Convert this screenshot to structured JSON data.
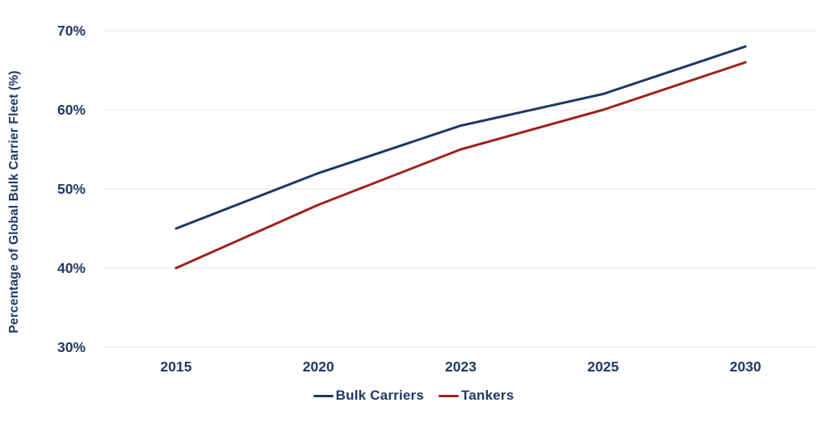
{
  "chart_data": {
    "type": "line",
    "title": "",
    "xlabel": "",
    "ylabel": "Percentage of Global Bulk Carrier Fleet (%)",
    "categories": [
      "2015",
      "2020",
      "2023",
      "2025",
      "2030"
    ],
    "series": [
      {
        "name": "Bulk Carriers",
        "color": "#1f3864",
        "values": [
          45,
          52,
          58,
          62,
          68
        ]
      },
      {
        "name": "Tankers",
        "color": "#9e2120",
        "values": [
          40,
          48,
          55,
          60,
          66
        ]
      }
    ],
    "ylim": [
      30,
      70
    ],
    "yticks": [
      {
        "value": 70,
        "label": "70%"
      },
      {
        "value": 60,
        "label": "60%"
      },
      {
        "value": 50,
        "label": "50%"
      },
      {
        "value": 40,
        "label": "40%"
      },
      {
        "value": 30,
        "label": "30%"
      }
    ],
    "grid": "horizontal",
    "gridline_color": "#e3e3e3",
    "text_color": "#1f3864",
    "legend_position": "bottom"
  }
}
